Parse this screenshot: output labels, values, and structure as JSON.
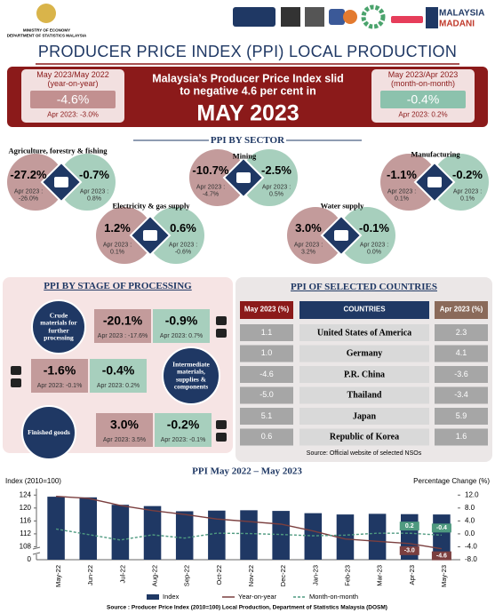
{
  "header": {
    "ministry": "MINISTRY OF ECONOMY",
    "department": "DEPARTMENT OF STATISTICS MALAYSIA",
    "brand1": "MALAYSIA",
    "brand2": "MADANI"
  },
  "title": "PRODUCER PRICE INDEX (PPI) LOCAL PRODUCTION",
  "banner": {
    "headline": "Malaysia’s Producer Price Index slid to negative 4.6 per cent in",
    "month": "MAY 2023",
    "yoy": {
      "label": "May 2023/May 2022",
      "sublabel": "(year-on-year)",
      "value": "-4.6%",
      "previous": "Apr 2023: -3.0%"
    },
    "mom": {
      "label": "May 2023/Apr 2023",
      "sublabel": "(month-on-month)",
      "value": "-0.4%",
      "previous": "Apr 2023: 0.2%"
    }
  },
  "sectors": {
    "title": "PPI BY SECTOR",
    "items": [
      {
        "name": "Agriculture, forestry & fishing",
        "yoy": "-27.2%",
        "yoy_previous": "Apr 2023 : -26.0%",
        "mom": "-0.7%",
        "mom_previous": "Apr 2023 : 0.8%"
      },
      {
        "name": "Mining",
        "yoy": "-10.7%",
        "yoy_previous": "Apr 2023 : -4.7%",
        "mom": "-2.5%",
        "mom_previous": "Apr 2023 : 0.5%"
      },
      {
        "name": "Manufacturing",
        "yoy": "-1.1%",
        "yoy_previous": "Apr 2023 : 0.1%",
        "mom": "-0.2%",
        "mom_previous": "Apr 2023 : 0.1%"
      },
      {
        "name": "Electricity & gas supply",
        "yoy": "1.2%",
        "yoy_previous": "Apr 2023 : 0.1%",
        "mom": "0.6%",
        "mom_previous": "Apr 2023 : -0.6%"
      },
      {
        "name": "Water supply",
        "yoy": "3.0%",
        "yoy_previous": "Apr 2023 : 3.2%",
        "mom": "-0.1%",
        "mom_previous": "Apr 2023 : 0.0%"
      }
    ]
  },
  "stages": {
    "title": "PPI BY STAGE OF PROCESSING",
    "items": [
      {
        "name": "Crude materials for further processing",
        "yoy": "-20.1%",
        "yoy_previous": "Apr 2023 : -17.6%",
        "mom": "-0.9%",
        "mom_previous": "Apr 2023: 0.7%"
      },
      {
        "name": "Intermediate materials, supplies & components",
        "yoy": "-1.6%",
        "yoy_previous": "Apr 2023: -0.1%",
        "mom": "-0.4%",
        "mom_previous": "Apr 2023: 0.2%"
      },
      {
        "name": "Finished goods",
        "yoy": "3.0%",
        "yoy_previous": "Apr 2023: 3.5%",
        "mom": "-0.2%",
        "mom_previous": "Apr 2023: -0.1%"
      }
    ]
  },
  "countries": {
    "title": "PPI OF SELECTED COUNTRIES",
    "headers": [
      "May 2023 (%)",
      "COUNTRIES",
      "Apr 2023 (%)"
    ],
    "rows": [
      [
        "1.1",
        "United States of America",
        "2.3"
      ],
      [
        "1.0",
        "Germany",
        "4.1"
      ],
      [
        "-4.6",
        "P.R. China",
        "-3.6"
      ],
      [
        "-5.0",
        "Thailand",
        "-3.4"
      ],
      [
        "5.1",
        "Japan",
        "5.9"
      ],
      [
        "0.6",
        "Republic of Korea",
        "1.6"
      ]
    ],
    "source": "Source: Official website of selected NSOs"
  },
  "chart_data": {
    "type": "bar",
    "title": "PPI May 2022 – May 2023",
    "y_label": "Index (2010=100)",
    "y2_label": "Percentage Change (%)",
    "categories": [
      "May-22",
      "Jun-22",
      "Jul-22",
      "Aug-22",
      "Sep-22",
      "Oct-22",
      "Nov-22",
      "Dec-22",
      "Jan-23",
      "Feb-23",
      "Mar-23",
      "Apr-23",
      "May-23"
    ],
    "ylim": [
      104,
      126
    ],
    "yticks": [
      108,
      112,
      116,
      120,
      124
    ],
    "axis_break_label": "0",
    "y2lim": [
      -8,
      14
    ],
    "y2ticks": [
      {
        "value": -8,
        "label": "-8.0"
      },
      {
        "value": -4,
        "label": "-4.0"
      },
      {
        "value": 0,
        "label": "0.0"
      },
      {
        "value": 4,
        "label": "4.0"
      },
      {
        "value": 8,
        "label": "8.0"
      },
      {
        "value": 12,
        "label": "12.0"
      }
    ],
    "series": [
      {
        "name": "Index",
        "type": "bar",
        "color": "#1f3864",
        "values": [
          123.5,
          123.3,
          121.0,
          120.6,
          119.0,
          119.2,
          119.3,
          119.1,
          118.4,
          118.0,
          118.2,
          118.1,
          118.0
        ]
      },
      {
        "name": "Year-on-year",
        "type": "line",
        "axis": "y2",
        "color": "#7b3f3f",
        "values": [
          11.6,
          11.0,
          8.8,
          7.2,
          6.0,
          4.6,
          3.8,
          3.0,
          0.9,
          -1.6,
          -2.3,
          -3.0,
          -4.6
        ],
        "value_labels": [
          null,
          null,
          null,
          null,
          null,
          null,
          null,
          null,
          null,
          null,
          null,
          "-3.0",
          "-4.6"
        ]
      },
      {
        "name": "Month-on-month",
        "type": "line",
        "axis": "y2",
        "color": "#4f9a80",
        "dashed": true,
        "values": [
          1.5,
          -0.2,
          -1.9,
          -0.3,
          -1.3,
          0.2,
          0.1,
          -0.2,
          -0.6,
          -0.4,
          0.2,
          0.2,
          -0.4
        ],
        "value_labels": [
          null,
          null,
          null,
          null,
          null,
          null,
          null,
          null,
          null,
          null,
          null,
          "0.2",
          "-0.4"
        ]
      }
    ],
    "source": "Source : Producer Price Index (2010=100) Local Production, Department of Statistics Malaysia (DOSM)"
  }
}
